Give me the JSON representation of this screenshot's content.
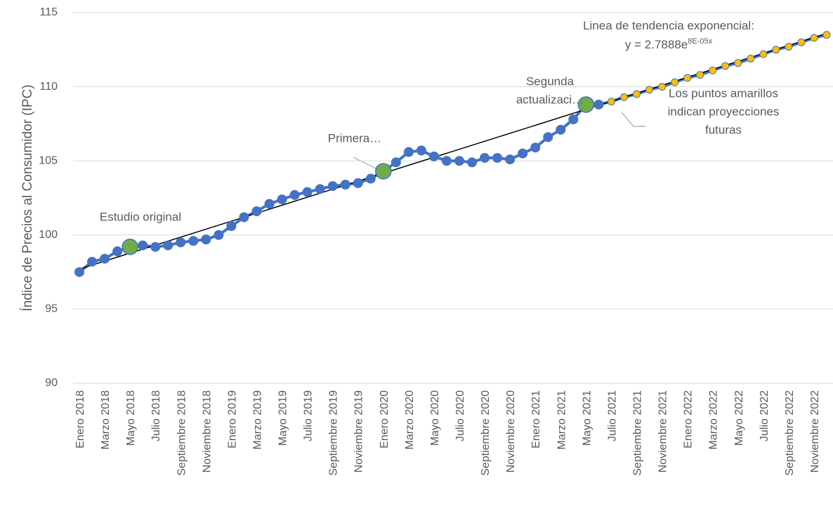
{
  "chart_data": {
    "type": "line",
    "y_label": "Índice de Precios al Consumidor (IPC)",
    "categories": [
      "Enero 2018",
      null,
      "Marzo 2018",
      null,
      "Mayo 2018",
      null,
      "Julio 2018",
      null,
      "Septiembre 2018",
      null,
      "Noviembre 2018",
      null,
      "Enero 2019",
      null,
      "Marzo 2019",
      null,
      "Mayo 2019",
      null,
      "Julio 2019",
      null,
      "Septiembre 2019",
      null,
      "Noviembre 2019",
      null,
      "Enero 2020",
      null,
      "Marzo 2020",
      null,
      "Mayo 2020",
      null,
      "Julio 2020",
      null,
      "Septiembre 2020",
      null,
      "Noviembre 2020",
      null,
      "Enero 2021",
      null,
      "Marzo 2021",
      null,
      "Mayo 2021",
      null,
      "Julio 2021",
      null,
      "Septiembre 2021",
      null,
      "Noviembre 2021",
      null,
      "Enero 2022",
      null,
      "Marzo 2022",
      null,
      "Mayo 2022",
      null,
      "Julio 2022",
      null,
      "Septiembre 2022",
      null,
      "Noviembre 2022",
      null
    ],
    "series": [
      {
        "color": "#4472c4",
        "values": [
          97.5,
          98.2,
          98.4,
          98.9,
          99.2,
          99.3,
          99.2,
          99.3,
          99.5,
          99.6,
          99.7,
          100.0,
          100.6,
          101.2,
          101.6,
          102.1,
          102.4,
          102.7,
          102.9,
          103.1,
          103.3,
          103.4,
          103.5,
          103.8,
          104.3,
          104.9,
          105.6,
          105.7,
          105.3,
          105.0,
          105.0,
          104.9,
          105.2,
          105.2,
          105.1,
          105.5,
          105.9,
          106.6,
          107.1,
          107.8,
          108.8,
          108.8,
          109.0,
          109.3,
          109.5,
          109.8,
          110.0,
          110.3,
          110.6,
          110.8,
          111.1,
          111.4,
          111.6,
          111.9,
          112.2,
          112.5,
          112.7,
          113.0,
          113.3,
          113.5
        ],
        "point_colors": [
          "#4472c4",
          "#4472c4",
          "#4472c4",
          "#4472c4",
          "#70ad47",
          "#4472c4",
          "#4472c4",
          "#4472c4",
          "#4472c4",
          "#4472c4",
          "#4472c4",
          "#4472c4",
          "#4472c4",
          "#4472c4",
          "#4472c4",
          "#4472c4",
          "#4472c4",
          "#4472c4",
          "#4472c4",
          "#4472c4",
          "#4472c4",
          "#4472c4",
          "#4472c4",
          "#4472c4",
          "#70ad47",
          "#4472c4",
          "#4472c4",
          "#4472c4",
          "#4472c4",
          "#4472c4",
          "#4472c4",
          "#4472c4",
          "#4472c4",
          "#4472c4",
          "#4472c4",
          "#4472c4",
          "#4472c4",
          "#4472c4",
          "#4472c4",
          "#4472c4",
          "#70ad47",
          "#4472c4",
          "#ffc000",
          "#ffc000",
          "#ffc000",
          "#ffc000",
          "#ffc000",
          "#ffc000",
          "#ffc000",
          "#ffc000",
          "#ffc000",
          "#ffc000",
          "#ffc000",
          "#ffc000",
          "#ffc000",
          "#ffc000",
          "#ffc000",
          "#ffc000",
          "#ffc000",
          "#ffc000"
        ]
      }
    ],
    "trendline": {
      "label": "Linea de tendencia exponencial:",
      "equation": "y = 2.7888e",
      "exponent": "8E-05x",
      "color": "#000000",
      "values": [
        97.7,
        113.6
      ]
    },
    "annotations": [
      {
        "lines": [
          "Estudio original"
        ]
      },
      {
        "lines": [
          "Primera…"
        ]
      },
      {
        "lines": [
          "Segunda",
          "actualizaci…"
        ]
      },
      {
        "lines": [
          "Los puntos amarillos",
          "indican proyecciones",
          "futuras"
        ]
      }
    ],
    "ylim": [
      90,
      115
    ],
    "yticks": [
      90,
      95,
      100,
      105,
      110,
      115
    ],
    "grid": true
  }
}
